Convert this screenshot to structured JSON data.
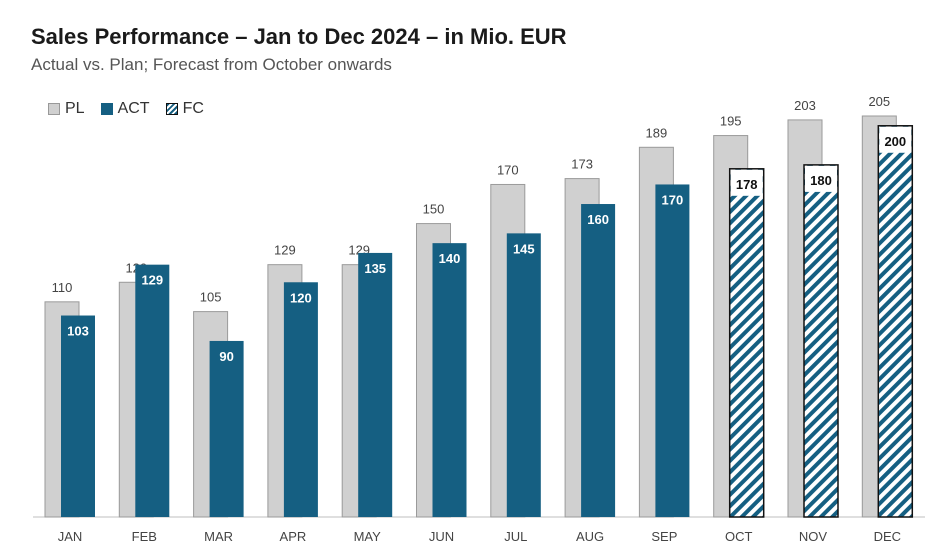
{
  "title": "Sales Performance – Jan to Dec 2024 – in Mio. EUR",
  "subtitle": "Actual vs. Plan; Forecast from October onwards",
  "legend": {
    "pl": "PL",
    "act": "ACT",
    "fc": "FC"
  },
  "colors": {
    "plan": "#d0d0d0",
    "actual": "#155f82",
    "forecast_stripe": "#155f82",
    "axis": "#bfbfbf"
  },
  "chart_data": {
    "type": "bar",
    "title": "Sales Performance – Jan to Dec 2024 – in Mio. EUR",
    "subtitle": "Actual vs. Plan; Forecast from October onwards",
    "categories": [
      "JAN",
      "FEB",
      "MAR",
      "APR",
      "MAY",
      "JUN",
      "JUL",
      "AUG",
      "SEP",
      "OCT",
      "NOV",
      "DEC"
    ],
    "series": [
      {
        "name": "PL",
        "values": [
          110,
          120,
          105,
          129,
          129,
          150,
          170,
          173,
          189,
          195,
          203,
          205
        ]
      },
      {
        "name": "ACT",
        "values": [
          103,
          129,
          90,
          120,
          135,
          140,
          145,
          160,
          170,
          null,
          null,
          null
        ]
      },
      {
        "name": "FC",
        "values": [
          null,
          null,
          null,
          null,
          null,
          null,
          null,
          null,
          null,
          178,
          180,
          200
        ]
      }
    ],
    "ylim": [
      0,
      205
    ],
    "grid": false,
    "legend_position": "top-left"
  }
}
